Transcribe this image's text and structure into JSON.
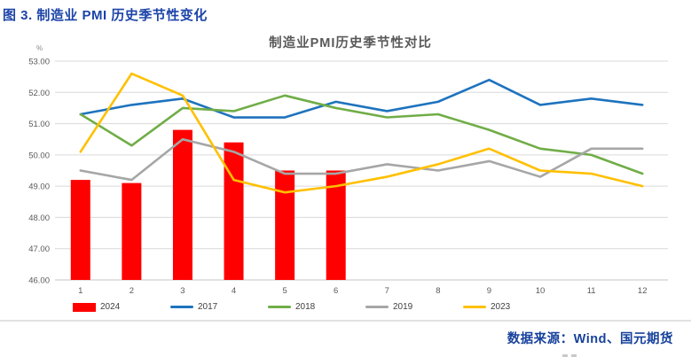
{
  "page": {
    "heading": "图 3. 制造业 PMI 历史季节性变化",
    "heading_color": "#1d44a8",
    "source": "数据来源：Wind、国元期货",
    "source_color": "#17419c"
  },
  "chart_data": {
    "type": "combo",
    "title": "制造业PMI历史季节性对比",
    "unit_label": "%",
    "categories": [
      "1",
      "2",
      "3",
      "4",
      "5",
      "6",
      "7",
      "8",
      "9",
      "10",
      "11",
      "12"
    ],
    "series": [
      {
        "name": "2024",
        "type": "bar",
        "color": "#ff0000",
        "values": [
          49.2,
          49.1,
          50.8,
          50.4,
          49.5,
          49.5,
          null,
          null,
          null,
          null,
          null,
          null
        ]
      },
      {
        "name": "2017",
        "type": "line",
        "color": "#1e73be",
        "values": [
          51.3,
          51.6,
          51.8,
          51.2,
          51.2,
          51.7,
          51.4,
          51.7,
          52.4,
          51.6,
          51.8,
          51.6
        ]
      },
      {
        "name": "2018",
        "type": "line",
        "color": "#70ad47",
        "values": [
          51.3,
          50.3,
          51.5,
          51.4,
          51.9,
          51.5,
          51.2,
          51.3,
          50.8,
          50.2,
          50.0,
          49.4
        ]
      },
      {
        "name": "2019",
        "type": "line",
        "color": "#a6a6a6",
        "values": [
          49.5,
          49.2,
          50.5,
          50.1,
          49.4,
          49.4,
          49.7,
          49.5,
          49.8,
          49.3,
          50.2,
          50.2
        ]
      },
      {
        "name": "2023",
        "type": "line",
        "color": "#ffc000",
        "values": [
          50.1,
          52.6,
          51.9,
          49.2,
          48.8,
          49.0,
          49.3,
          49.7,
          50.2,
          49.5,
          49.4,
          49.0
        ]
      }
    ],
    "ylim": [
      46,
      53
    ],
    "ytick_step": 1,
    "ytick_decimals": 2,
    "grid": true,
    "legend_position": "bottom",
    "axis_label_color": "#595959",
    "gridline_color": "#d9d9d9",
    "axisline_color": "#c6c6c6"
  }
}
